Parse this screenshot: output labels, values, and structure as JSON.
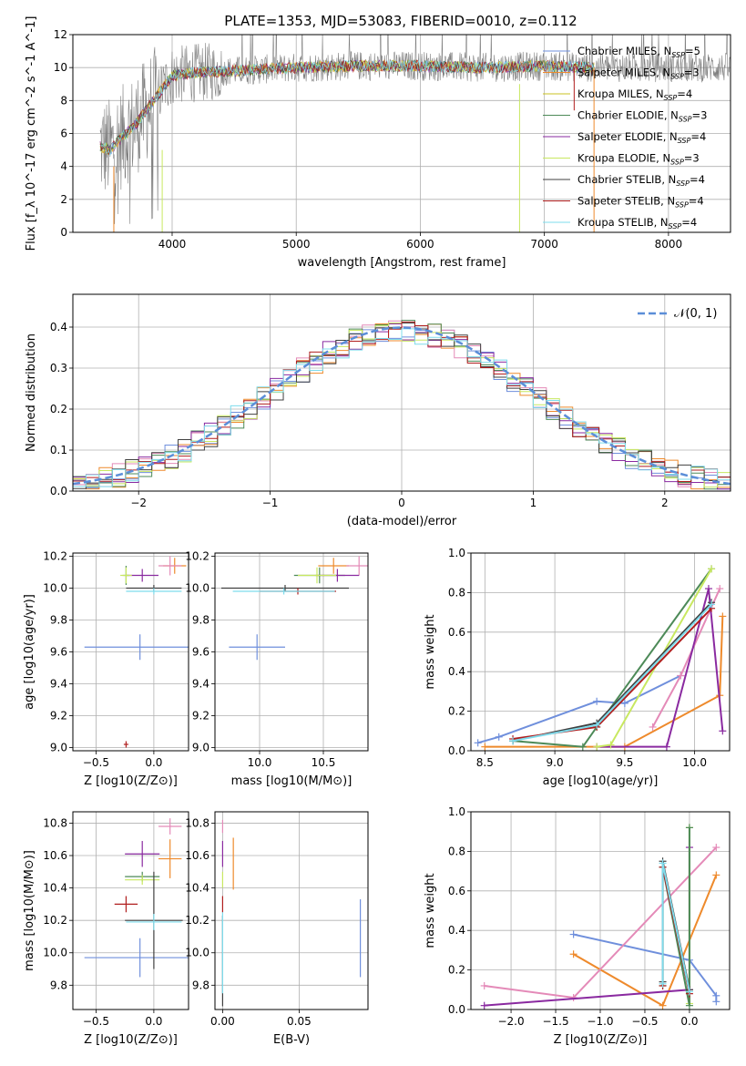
{
  "title": "PLATE=1353, MJD=53083, FIBERID=0010, z=0.112",
  "colors": {
    "chabrier_miles": "#6f8fdc",
    "salpeter_miles": "#ee8a2c",
    "kroupa_miles": "#c9c020",
    "chabrier_elodie": "#4d8a58",
    "salpeter_elodie": "#8a2aa0",
    "kroupa_elodie": "#c8e860",
    "chabrier_stelib": "#404040",
    "salpeter_stelib": "#b01e1e",
    "kroupa_stelib": "#7edcec",
    "pink": "#e48ab8",
    "spectrum_grey": "#808080",
    "gaussian": "#5b8ed8"
  },
  "chart_data": [
    {
      "type": "line",
      "panel": "spectrum",
      "xlabel": "wavelength [Angstrom, rest frame]",
      "ylabel": "Flux [f_λ 10^-17 erg cm^-2 s^-1 A^-1]",
      "xlim": [
        3200,
        8500
      ],
      "ylim": [
        0,
        12
      ],
      "xticks": [
        "4000",
        "5000",
        "6000",
        "7000",
        "8000"
      ],
      "yticks": [
        "0",
        "2",
        "4",
        "6",
        "8",
        "10",
        "12"
      ],
      "legend_position": "right",
      "legend": [
        {
          "name": "Chabrier MILES",
          "nssp": "5",
          "color_key": "chabrier_miles"
        },
        {
          "name": "Salpeter MILES",
          "nssp": "3",
          "color_key": "salpeter_miles"
        },
        {
          "name": "Kroupa MILES",
          "nssp": "4",
          "color_key": "kroupa_miles"
        },
        {
          "name": "Chabrier ELODIE",
          "nssp": "3",
          "color_key": "chabrier_elodie"
        },
        {
          "name": "Salpeter ELODIE",
          "nssp": "4",
          "color_key": "salpeter_elodie"
        },
        {
          "name": "Kroupa ELODIE",
          "nssp": "3",
          "color_key": "kroupa_elodie"
        },
        {
          "name": "Chabrier STELIB",
          "nssp": "4",
          "color_key": "chabrier_stelib"
        },
        {
          "name": "Salpeter STELIB",
          "nssp": "4",
          "color_key": "salpeter_stelib"
        },
        {
          "name": "Kroupa STELIB",
          "nssp": "4",
          "color_key": "kroupa_stelib"
        }
      ],
      "data_envelope": {
        "x": [
          3420,
          3500,
          3600,
          3700,
          3800,
          3900,
          4000,
          4200,
          4500,
          5000,
          5500,
          6000,
          6500,
          7000,
          7400
        ],
        "y": [
          5.2,
          5.0,
          5.8,
          6.5,
          7.5,
          8.5,
          9.5,
          9.7,
          9.8,
          10.0,
          10.1,
          10.1,
          10.0,
          10.1,
          10.0
        ]
      }
    },
    {
      "type": "histogram",
      "panel": "residuals",
      "xlabel": "(data-model)/error",
      "ylabel": "Normed distribution",
      "xlim": [
        -2.5,
        2.5
      ],
      "ylim": [
        0,
        0.48
      ],
      "xticks": [
        "−2",
        "−1",
        "0",
        "1",
        "2"
      ],
      "yticks": [
        "0.0",
        "0.1",
        "0.2",
        "0.3",
        "0.4"
      ],
      "gaussian_label": "𝒩(0, 1)",
      "legend_position": "top-right",
      "bin_width": 0.1
    },
    {
      "type": "scatter",
      "panel": "age_vs_Z",
      "xlabel": "Z [log10(Z/Z⊙)]",
      "ylabel": "age [log10(age/yr)]",
      "xlim": [
        -0.7,
        0.3
      ],
      "ylim": [
        8.98,
        10.22
      ],
      "xticks": [
        "−0.5",
        "0.0"
      ],
      "yticks": [
        "9.0",
        "9.2",
        "9.4",
        "9.6",
        "9.8",
        "10.0",
        "10.2"
      ],
      "points": [
        {
          "color_key": "chabrier_miles",
          "x": -0.12,
          "xerr": 0.48,
          "y": 9.63,
          "yerr": 0.08
        },
        {
          "color_key": "salpeter_miles",
          "x": 0.18,
          "xerr": 0.1,
          "y": 10.14,
          "yerr": 0.05
        },
        {
          "color_key": "pink",
          "x": 0.14,
          "xerr": 0.1,
          "y": 10.14,
          "yerr": 0.06
        },
        {
          "color_key": "chabrier_elodie",
          "x": -0.24,
          "xerr": 0.03,
          "y": 10.08,
          "yerr": 0.06
        },
        {
          "color_key": "salpeter_elodie",
          "x": -0.1,
          "xerr": 0.14,
          "y": 10.08,
          "yerr": 0.04
        },
        {
          "color_key": "kroupa_elodie",
          "x": -0.24,
          "xerr": 0.05,
          "y": 10.08,
          "yerr": 0.05
        },
        {
          "color_key": "chabrier_stelib",
          "x": 0.0,
          "xerr": 0.24,
          "y": 10.0,
          "yerr": 0.02
        },
        {
          "color_key": "salpeter_stelib",
          "x": -0.24,
          "xerr": 0.02,
          "y": 9.02,
          "yerr": 0.02
        },
        {
          "color_key": "kroupa_stelib",
          "x": 0.0,
          "xerr": 0.24,
          "y": 9.98,
          "yerr": 0.02
        }
      ]
    },
    {
      "type": "scatter",
      "panel": "age_vs_mass",
      "xlabel": "mass [log10(M/M⊙)]",
      "ylabel": "",
      "xlim": [
        9.65,
        10.85
      ],
      "ylim": [
        8.98,
        10.22
      ],
      "xticks": [
        "10.0",
        "10.5"
      ],
      "yticks": [
        "9.0",
        "9.2",
        "9.4",
        "9.6",
        "9.8",
        "10.0",
        "10.2"
      ],
      "points": [
        {
          "color_key": "chabrier_miles",
          "x": 9.98,
          "xerr": 0.22,
          "y": 9.63,
          "yerr": 0.08
        },
        {
          "color_key": "salpeter_miles",
          "x": 10.58,
          "xerr": 0.12,
          "y": 10.14,
          "yerr": 0.05
        },
        {
          "color_key": "pink",
          "x": 10.78,
          "xerr": 0.1,
          "y": 10.14,
          "yerr": 0.06
        },
        {
          "color_key": "chabrier_elodie",
          "x": 10.47,
          "xerr": 0.2,
          "y": 10.08,
          "yerr": 0.05
        },
        {
          "color_key": "salpeter_elodie",
          "x": 10.61,
          "xerr": 0.17,
          "y": 10.08,
          "yerr": 0.04
        },
        {
          "color_key": "kroupa_elodie",
          "x": 10.45,
          "xerr": 0.15,
          "y": 10.08,
          "yerr": 0.05
        },
        {
          "color_key": "chabrier_stelib",
          "x": 10.2,
          "xerr": 0.5,
          "y": 10.0,
          "yerr": 0.02
        },
        {
          "color_key": "salpeter_stelib",
          "x": 10.3,
          "xerr": 0.3,
          "y": 9.98,
          "yerr": 0.02
        },
        {
          "color_key": "kroupa_stelib",
          "x": 10.19,
          "xerr": 0.4,
          "y": 9.98,
          "yerr": 0.02
        }
      ]
    },
    {
      "type": "line",
      "panel": "weight_vs_age",
      "xlabel": "age [log10(age/yr)]",
      "ylabel": "mass weight",
      "xlim": [
        8.4,
        10.25
      ],
      "ylim": [
        0,
        1
      ],
      "xticks": [
        "8.5",
        "9.0",
        "9.5",
        "10.0"
      ],
      "yticks": [
        "0.0",
        "0.2",
        "0.4",
        "0.6",
        "0.8",
        "1.0"
      ],
      "series": [
        {
          "color_key": "chabrier_miles",
          "x": [
            8.45,
            8.6,
            9.3,
            9.5,
            9.9
          ],
          "y": [
            0.04,
            0.07,
            0.25,
            0.24,
            0.38
          ]
        },
        {
          "color_key": "salpeter_miles",
          "x": [
            8.5,
            9.5,
            10.18,
            10.2
          ],
          "y": [
            0.02,
            0.02,
            0.28,
            0.68
          ]
        },
        {
          "color_key": "pink",
          "x": [
            9.7,
            9.9,
            10.18
          ],
          "y": [
            0.12,
            0.38,
            0.82
          ]
        },
        {
          "color_key": "chabrier_elodie",
          "x": [
            8.7,
            9.2,
            9.3,
            10.12
          ],
          "y": [
            0.05,
            0.02,
            0.12,
            0.92
          ]
        },
        {
          "color_key": "salpeter_elodie",
          "x": [
            9.3,
            9.8,
            10.1,
            10.2
          ],
          "y": [
            0.02,
            0.02,
            0.82,
            0.1
          ]
        },
        {
          "color_key": "kroupa_elodie",
          "x": [
            9.3,
            9.4,
            10.12
          ],
          "y": [
            0.02,
            0.03,
            0.92
          ]
        },
        {
          "color_key": "chabrier_stelib",
          "x": [
            8.7,
            9.3,
            10.12
          ],
          "y": [
            0.05,
            0.14,
            0.75
          ]
        },
        {
          "color_key": "salpeter_stelib",
          "x": [
            8.7,
            9.3,
            10.12
          ],
          "y": [
            0.06,
            0.12,
            0.72
          ]
        },
        {
          "color_key": "kroupa_stelib",
          "x": [
            8.7,
            9.3,
            10.12
          ],
          "y": [
            0.05,
            0.13,
            0.74
          ]
        }
      ]
    },
    {
      "type": "scatter",
      "panel": "mass_vs_Z",
      "xlabel": "Z [log10(Z/Z⊙)]",
      "ylabel": "mass [log10(M/M⊙)]",
      "xlim": [
        -0.7,
        0.3
      ],
      "ylim": [
        9.65,
        10.87
      ],
      "xticks": [
        "−0.5",
        "0.0"
      ],
      "yticks": [
        "9.8",
        "10.0",
        "10.2",
        "10.4",
        "10.6",
        "10.8"
      ],
      "points": [
        {
          "color_key": "chabrier_miles",
          "x": -0.12,
          "xerr": 0.48,
          "y": 9.97,
          "yerr": 0.12
        },
        {
          "color_key": "salpeter_miles",
          "x": 0.14,
          "xerr": 0.1,
          "y": 10.58,
          "yerr": 0.12
        },
        {
          "color_key": "pink",
          "x": 0.14,
          "xerr": 0.1,
          "y": 10.78,
          "yerr": 0.05
        },
        {
          "color_key": "chabrier_elodie",
          "x": -0.1,
          "xerr": 0.15,
          "y": 10.47,
          "yerr": 0.03
        },
        {
          "color_key": "salpeter_elodie",
          "x": -0.1,
          "xerr": 0.15,
          "y": 10.61,
          "yerr": 0.08
        },
        {
          "color_key": "kroupa_elodie",
          "x": -0.1,
          "xerr": 0.15,
          "y": 10.45,
          "yerr": 0.03
        },
        {
          "color_key": "chabrier_stelib",
          "x": 0.0,
          "xerr": 0.25,
          "y": 10.2,
          "yerr": 0.3
        },
        {
          "color_key": "salpeter_stelib",
          "x": -0.24,
          "xerr": 0.1,
          "y": 10.3,
          "yerr": 0.05
        },
        {
          "color_key": "kroupa_stelib",
          "x": 0.0,
          "xerr": 0.24,
          "y": 10.19,
          "yerr": 0.05
        }
      ]
    },
    {
      "type": "scatter",
      "panel": "mass_vs_ebv",
      "xlabel": "E(B-V)",
      "ylabel": "",
      "xlim": [
        -0.005,
        0.095
      ],
      "ylim": [
        9.65,
        10.87
      ],
      "xticks": [
        "0.00",
        "0.05"
      ],
      "yticks": [
        "9.8",
        "10.0",
        "10.2",
        "10.4",
        "10.6",
        "10.8"
      ],
      "points": [
        {
          "color_key": "chabrier_miles",
          "x": 0.09,
          "xerr": 0.0,
          "y": 10.09,
          "yerr": 0.24
        },
        {
          "color_key": "salpeter_miles",
          "x": 0.007,
          "xerr": 0.0,
          "y": 10.55,
          "yerr": 0.16
        },
        {
          "color_key": "pink",
          "x": 0.0,
          "xerr": 0.0,
          "y": 10.78,
          "yerr": 0.04
        },
        {
          "color_key": "salpeter_elodie",
          "x": 0.0,
          "xerr": 0.0,
          "y": 10.61,
          "yerr": 0.08
        },
        {
          "color_key": "kroupa_elodie",
          "x": 0.0,
          "xerr": 0.0,
          "y": 10.45,
          "yerr": 0.05
        },
        {
          "color_key": "salpeter_stelib",
          "x": 0.0,
          "xerr": 0.0,
          "y": 10.3,
          "yerr": 0.05
        },
        {
          "color_key": "chabrier_stelib",
          "x": 0.0,
          "xerr": 0.0,
          "y": 9.95,
          "yerr": 0.28
        },
        {
          "color_key": "kroupa_stelib",
          "x": 0.0,
          "xerr": 0.0,
          "y": 10.0,
          "yerr": 0.25
        }
      ]
    },
    {
      "type": "line",
      "panel": "weight_vs_Z",
      "xlabel": "Z [log10(Z/Z⊙)]",
      "ylabel": "mass weight",
      "xlim": [
        -2.45,
        0.45
      ],
      "ylim": [
        0,
        1
      ],
      "xticks": [
        "−2.0",
        "−1.5",
        "−1.0",
        "−0.5",
        "0.0"
      ],
      "yticks": [
        "0.0",
        "0.2",
        "0.4",
        "0.6",
        "0.8",
        "1.0"
      ],
      "series": [
        {
          "color_key": "chabrier_miles",
          "x": [
            -1.3,
            0.0,
            0.3,
            0.3
          ],
          "y": [
            0.38,
            0.25,
            0.07,
            0.04
          ]
        },
        {
          "color_key": "salpeter_miles",
          "x": [
            -1.3,
            -0.3,
            0.3
          ],
          "y": [
            0.28,
            0.02,
            0.68
          ]
        },
        {
          "color_key": "pink",
          "x": [
            -2.3,
            -1.3,
            0.3
          ],
          "y": [
            0.12,
            0.06,
            0.82
          ]
        },
        {
          "color_key": "salpeter_elodie",
          "x": [
            -2.3,
            0.0,
            0.0
          ],
          "y": [
            0.02,
            0.1,
            0.82
          ]
        },
        {
          "color_key": "kroupa_elodie",
          "x": [
            0.0,
            0.0
          ],
          "y": [
            0.03,
            0.92
          ]
        },
        {
          "color_key": "chabrier_elodie",
          "x": [
            -0.3,
            -0.3,
            0.0,
            0.0
          ],
          "y": [
            0.12,
            0.72,
            0.02,
            0.92
          ]
        },
        {
          "color_key": "chabrier_stelib",
          "x": [
            -0.3,
            -0.3,
            0.0
          ],
          "y": [
            0.14,
            0.75,
            0.1
          ]
        },
        {
          "color_key": "salpeter_stelib",
          "x": [
            -0.3,
            -0.3,
            0.0
          ],
          "y": [
            0.12,
            0.72,
            0.08
          ]
        },
        {
          "color_key": "kroupa_stelib",
          "x": [
            -0.3,
            -0.3,
            0.0
          ],
          "y": [
            0.13,
            0.74,
            0.09
          ]
        }
      ]
    }
  ]
}
